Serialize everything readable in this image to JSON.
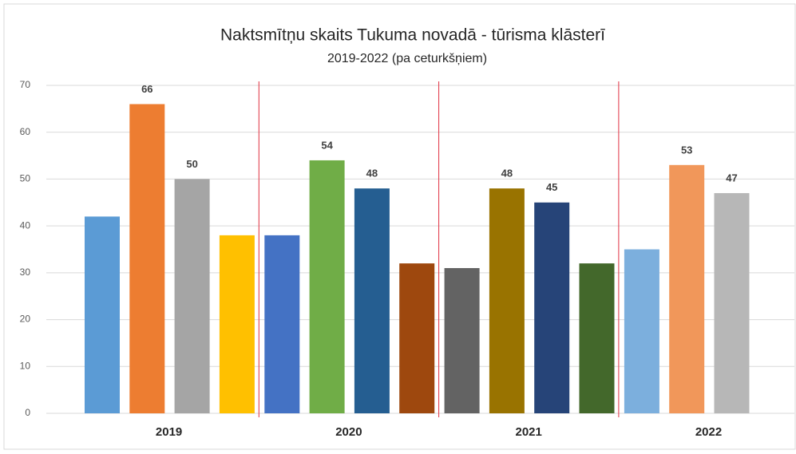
{
  "chart_data": {
    "type": "bar",
    "title": "Naktsmītņu skaits Tukuma novadā - tūrisma klāsterī",
    "subtitle": "2019-2022 (pa ceturkšņiem)",
    "groups": [
      {
        "name": "2019",
        "values": [
          42,
          66,
          50,
          38
        ],
        "colors": [
          "#5b9bd5",
          "#ed7d31",
          "#a5a5a5",
          "#ffc000"
        ],
        "value_labels": [
          null,
          "66",
          "50",
          null
        ]
      },
      {
        "name": "2020",
        "values": [
          38,
          54,
          48,
          32
        ],
        "colors": [
          "#4472c4",
          "#70ad47",
          "#255e91",
          "#9e480e"
        ],
        "value_labels": [
          null,
          "54",
          "48",
          null
        ]
      },
      {
        "name": "2021",
        "values": [
          31,
          48,
          45,
          32
        ],
        "colors": [
          "#636363",
          "#997300",
          "#264478",
          "#43682b"
        ],
        "value_labels": [
          null,
          "48",
          "45",
          null
        ]
      },
      {
        "name": "2022",
        "values": [
          35,
          53,
          47
        ],
        "colors": [
          "#7cafdd",
          "#f1975a",
          "#b7b7b7"
        ],
        "value_labels": [
          null,
          "53",
          "47"
        ]
      }
    ],
    "ylim": [
      0,
      70
    ],
    "yticks": [
      0,
      10,
      20,
      30,
      40,
      50,
      60,
      70
    ],
    "grid": true,
    "separator_color": "#e03040"
  }
}
